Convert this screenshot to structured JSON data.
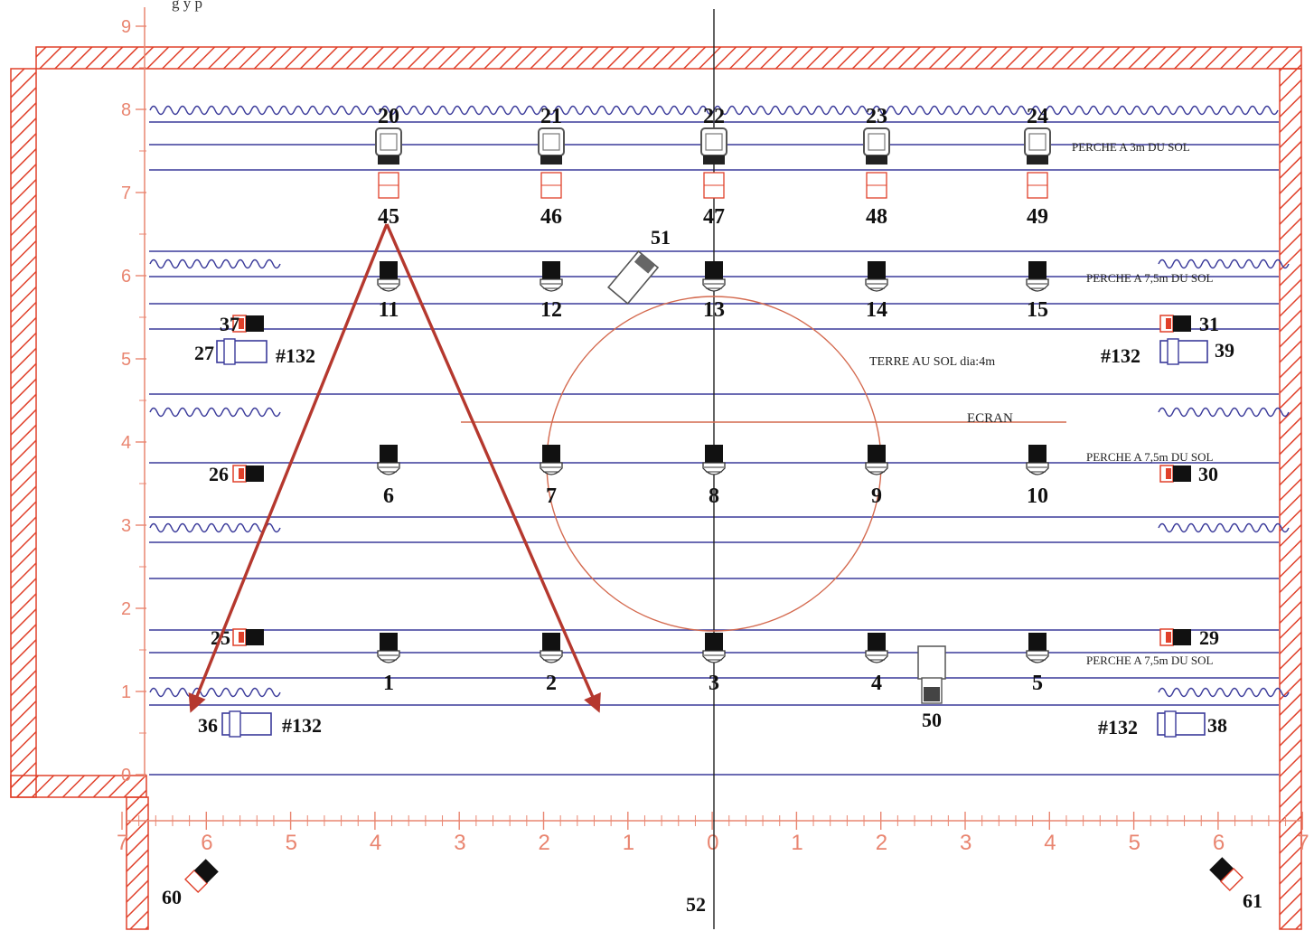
{
  "caption": "g                 y            p",
  "y_ticks": [
    "0",
    "1",
    "2",
    "3",
    "4",
    "5",
    "6",
    "7",
    "8",
    "9"
  ],
  "x_ticks": [
    "7",
    "6",
    "5",
    "4",
    "3",
    "2",
    "1",
    "0",
    "1",
    "2",
    "3",
    "4",
    "5",
    "6",
    "7"
  ],
  "annotations": {
    "perche_3m": "PERCHE A 3m DU SOL",
    "perche_top": "PERCHE A 7,5m DU SOL",
    "perche_mid": "PERCHE A 7,5m DU SOL",
    "perche_low": "PERCHE A 7,5m DU SOL",
    "terre": "TERRE AU SOL dia:4m",
    "ecran": "ECRAN"
  },
  "gels": [
    "#132",
    "#132",
    "#132",
    "#132"
  ],
  "fixtures": {
    "back_fresnels": [
      "20",
      "21",
      "22",
      "23",
      "24"
    ],
    "back_pc": [
      "45",
      "46",
      "47",
      "48",
      "49"
    ],
    "row_upper": [
      "11",
      "12",
      "13",
      "14",
      "15"
    ],
    "row_mid": [
      "6",
      "7",
      "8",
      "9",
      "10"
    ],
    "row_low": [
      "1",
      "2",
      "3",
      "4",
      "5"
    ],
    "side_left": [
      "37",
      "27",
      "26",
      "25",
      "36"
    ],
    "side_right": [
      "31",
      "39",
      "30",
      "29",
      "38"
    ],
    "specials": [
      "51",
      "50",
      "60",
      "61",
      "52"
    ]
  },
  "colors": {
    "frame": "#e0402a",
    "batten": "#3a3a9a",
    "arrow": "#b5382e",
    "circle": "#d46a4f",
    "ruler": "#e98570"
  }
}
